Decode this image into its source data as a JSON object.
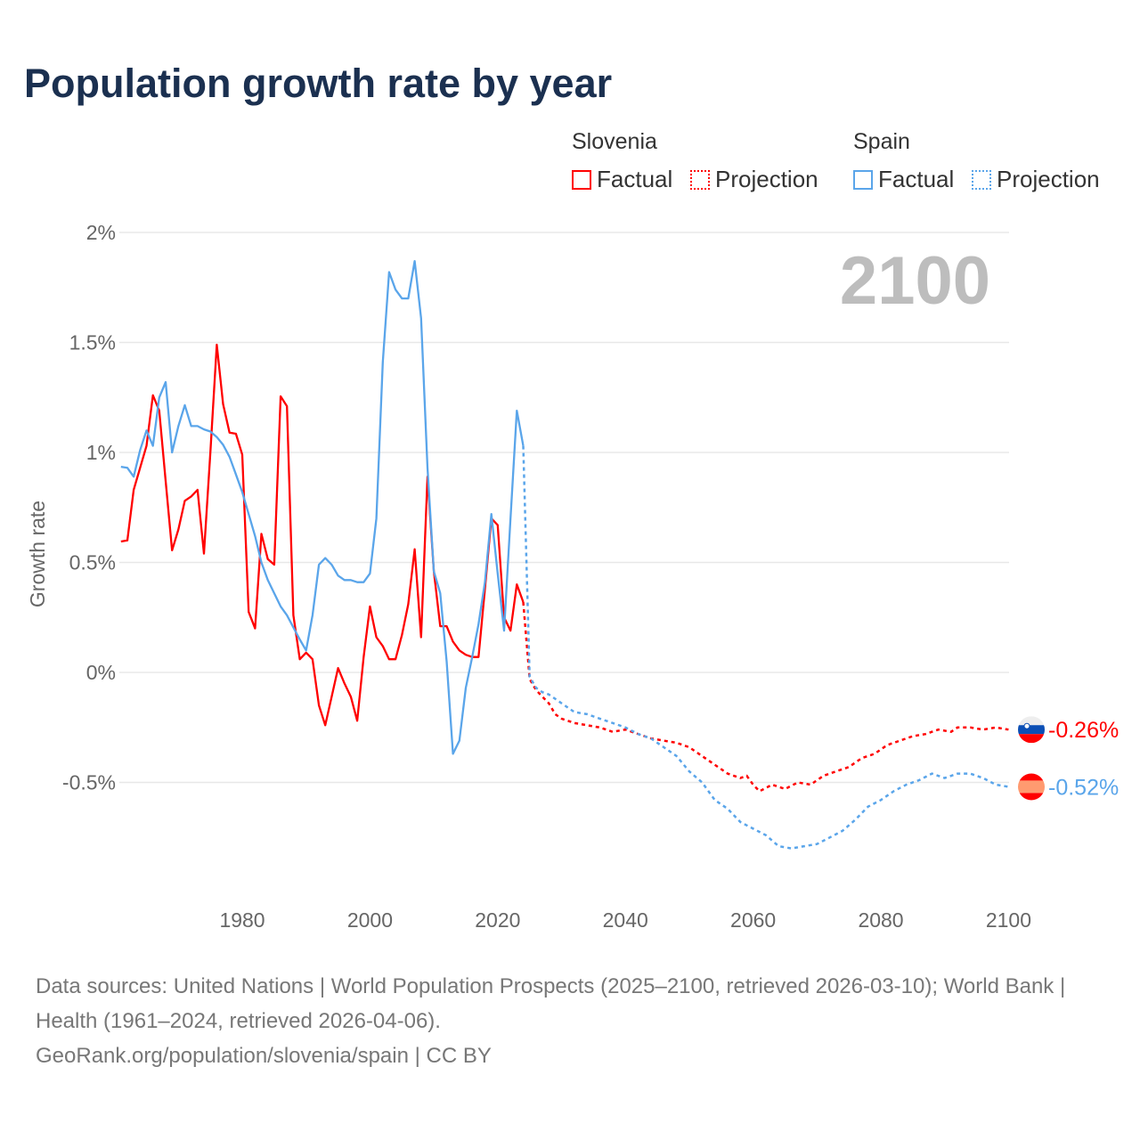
{
  "title": "Population growth rate by year",
  "legend": {
    "groups": [
      {
        "country": "Slovenia",
        "factual": "Factual",
        "projection": "Projection",
        "color": "#ff0000"
      },
      {
        "country": "Spain",
        "factual": "Factual",
        "projection": "Projection",
        "color": "#5aa5ea"
      }
    ]
  },
  "current_year_label": "2100",
  "source": {
    "line1": "Data sources: United Nations | World Population Prospects (2025–2100, retrieved 2026-03-10); World Bank | Health (1961–2024, retrieved 2026-04-06).",
    "line2": "GeoRank.org/population/slovenia/spain | CC BY"
  },
  "chart_data": {
    "type": "line",
    "title": "Population growth rate by year",
    "xlabel": "",
    "ylabel": "Growth rate",
    "xlim": [
      1961,
      2100
    ],
    "ylim": [
      -1.0,
      2.0
    ],
    "x_ticks": [
      1980,
      2000,
      2020,
      2040,
      2060,
      2080,
      2100
    ],
    "y_ticks": [
      {
        "v": 2,
        "label": "2%"
      },
      {
        "v": 1.5,
        "label": "1.5%"
      },
      {
        "v": 1,
        "label": "1%"
      },
      {
        "v": 0.5,
        "label": "0.5%"
      },
      {
        "v": 0,
        "label": "0%"
      },
      {
        "v": -0.5,
        "label": "-0.5%"
      }
    ],
    "grid": true,
    "legend_position": "top-right",
    "series": [
      {
        "name": "Slovenia",
        "color": "#ff0000",
        "end_label": "-0.26%",
        "flag": "slovenia-flag",
        "factual": {
          "start_year": 1961,
          "values": [
            0.595,
            0.6,
            0.83,
            0.93,
            1.03,
            1.26,
            1.19,
            0.87,
            0.555,
            0.65,
            0.78,
            0.8,
            0.83,
            0.54,
            1.0,
            1.49,
            1.22,
            1.09,
            1.085,
            0.99,
            0.275,
            0.2,
            0.63,
            0.515,
            0.49,
            1.255,
            1.21,
            0.26,
            0.06,
            0.09,
            0.06,
            -0.15,
            -0.24,
            -0.11,
            0.02,
            -0.05,
            -0.11,
            -0.22,
            0.07,
            0.3,
            0.16,
            0.12,
            0.06,
            0.06,
            0.17,
            0.31,
            0.56,
            0.16,
            0.89,
            0.46,
            0.21,
            0.21,
            0.14,
            0.1,
            0.08,
            0.07,
            0.07,
            0.38,
            0.7,
            0.67,
            0.25,
            0.19,
            0.4,
            0.32
          ]
        },
        "projection": {
          "x": [
            2024,
            2025,
            2026,
            2027,
            2028,
            2029,
            2030,
            2032,
            2034,
            2036,
            2038,
            2040,
            2042,
            2044,
            2046,
            2048,
            2050,
            2052,
            2054,
            2056,
            2058,
            2059,
            2060,
            2061,
            2063,
            2065,
            2067,
            2069,
            2071,
            2073,
            2075,
            2077,
            2079,
            2081,
            2083,
            2085,
            2087,
            2089,
            2091,
            2092,
            2094,
            2096,
            2098,
            2100
          ],
          "y": [
            0.32,
            -0.03,
            -0.08,
            -0.11,
            -0.14,
            -0.19,
            -0.21,
            -0.23,
            -0.24,
            -0.25,
            -0.27,
            -0.26,
            -0.28,
            -0.3,
            -0.31,
            -0.32,
            -0.34,
            -0.38,
            -0.42,
            -0.46,
            -0.48,
            -0.47,
            -0.51,
            -0.54,
            -0.51,
            -0.53,
            -0.5,
            -0.51,
            -0.47,
            -0.45,
            -0.43,
            -0.39,
            -0.37,
            -0.33,
            -0.31,
            -0.29,
            -0.28,
            -0.26,
            -0.27,
            -0.25,
            -0.25,
            -0.26,
            -0.25,
            -0.26
          ]
        }
      },
      {
        "name": "Spain",
        "color": "#5aa5ea",
        "end_label": "-0.52%",
        "flag": "spain-flag",
        "factual": {
          "start_year": 1961,
          "values": [
            0.935,
            0.93,
            0.89,
            1.01,
            1.1,
            1.03,
            1.25,
            1.32,
            1.0,
            1.12,
            1.215,
            1.12,
            1.12,
            1.105,
            1.095,
            1.07,
            1.035,
            0.98,
            0.9,
            0.82,
            0.72,
            0.62,
            0.5,
            0.42,
            0.36,
            0.3,
            0.26,
            0.205,
            0.15,
            0.1,
            0.26,
            0.49,
            0.52,
            0.49,
            0.44,
            0.42,
            0.42,
            0.41,
            0.41,
            0.45,
            0.7,
            1.41,
            1.82,
            1.74,
            1.7,
            1.7,
            1.87,
            1.61,
            0.93,
            0.46,
            0.36,
            0.05,
            -0.37,
            -0.31,
            -0.07,
            0.07,
            0.22,
            0.41,
            0.72,
            0.45,
            0.19,
            0.7,
            1.19,
            1.03
          ]
        },
        "projection": {
          "x": [
            2024,
            2025,
            2026,
            2027,
            2028,
            2030,
            2032,
            2034,
            2036,
            2038,
            2040,
            2042,
            2044,
            2046,
            2048,
            2050,
            2052,
            2054,
            2056,
            2058,
            2060,
            2062,
            2064,
            2066,
            2068,
            2070,
            2072,
            2074,
            2076,
            2078,
            2080,
            2082,
            2084,
            2086,
            2088,
            2090,
            2092,
            2094,
            2096,
            2098,
            2100
          ],
          "y": [
            1.03,
            -0.02,
            -0.07,
            -0.09,
            -0.1,
            -0.14,
            -0.18,
            -0.19,
            -0.21,
            -0.23,
            -0.25,
            -0.28,
            -0.3,
            -0.34,
            -0.38,
            -0.45,
            -0.5,
            -0.58,
            -0.62,
            -0.68,
            -0.71,
            -0.74,
            -0.79,
            -0.8,
            -0.79,
            -0.78,
            -0.75,
            -0.72,
            -0.67,
            -0.61,
            -0.58,
            -0.54,
            -0.51,
            -0.49,
            -0.46,
            -0.48,
            -0.46,
            -0.46,
            -0.48,
            -0.51,
            -0.52
          ]
        }
      }
    ]
  }
}
